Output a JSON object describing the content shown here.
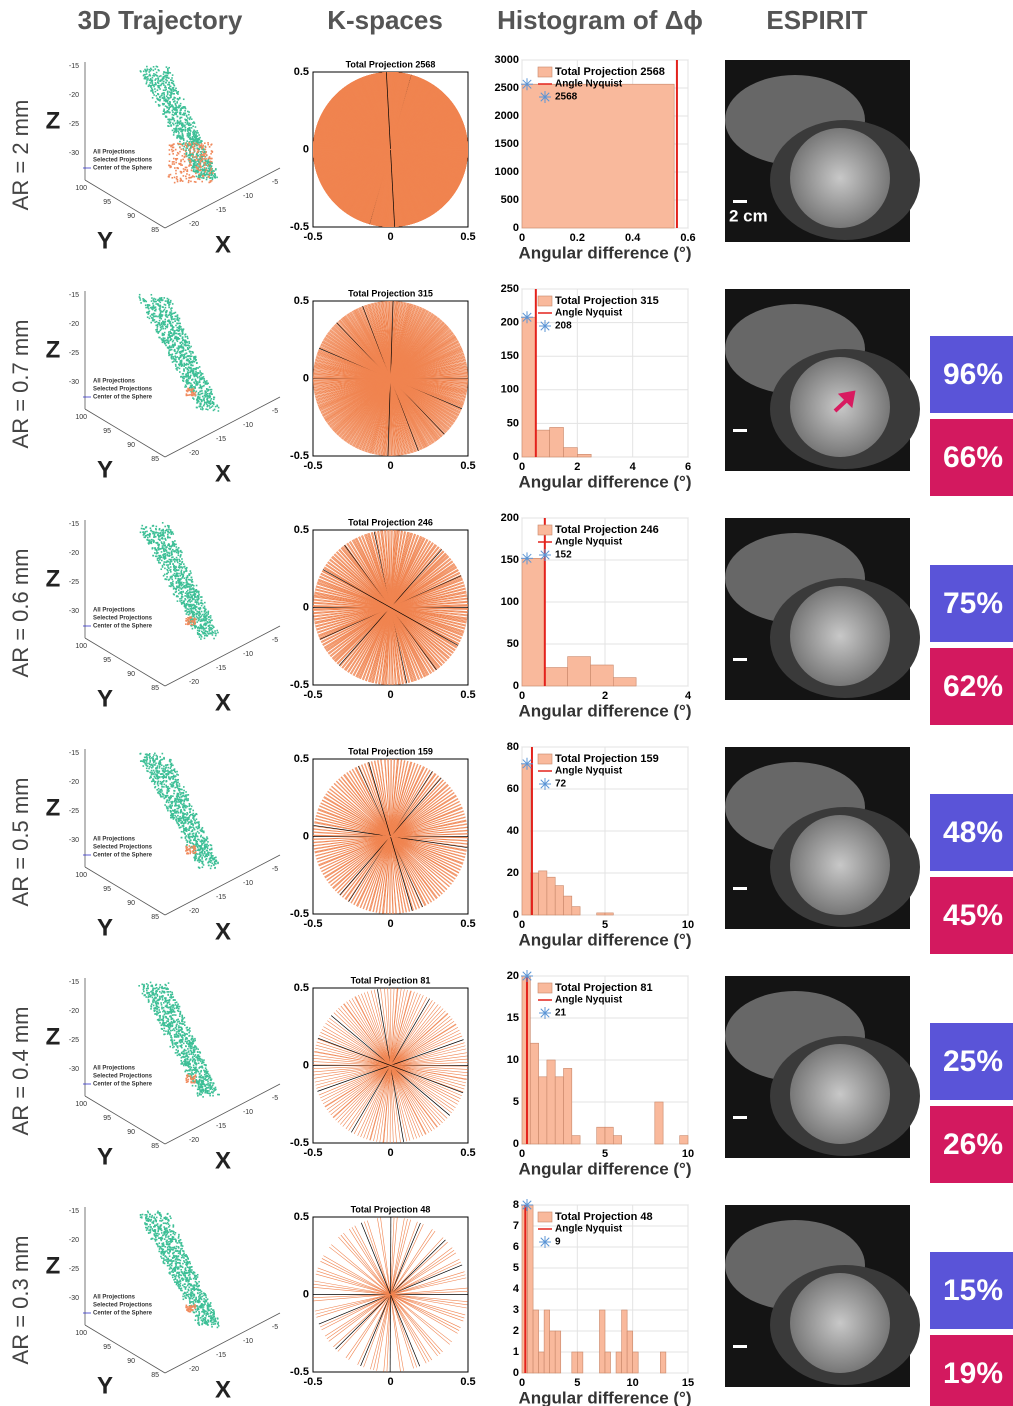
{
  "header": {
    "columns": [
      "3D Trajectory",
      "K-spaces",
      "Histogram of Δϕ",
      "ESPIRIT"
    ]
  },
  "trajectory": {
    "axis_labels": [
      "Z",
      "Y",
      "X"
    ],
    "z_ticks": [
      -15,
      -20,
      -25,
      -30
    ],
    "y_ticks": [
      100,
      95,
      90,
      85
    ],
    "x_ticks": [
      -5,
      -10,
      -15,
      -20
    ],
    "legend": [
      "All Projections",
      "Selected Projections",
      "Center of the Sphere"
    ]
  },
  "kspace": {
    "ticks": [
      -0.5,
      0,
      0.5
    ]
  },
  "histogram": {
    "xlabel": "Angular difference (°)",
    "legend_nyquist": "Angle Nyquist",
    "bar_color": "#f9b99c",
    "nyquist_color": "#e3221c"
  },
  "scale_bar_label": "2 cm",
  "rows": [
    {
      "label": "AR = 2 mm",
      "kspace_title": "Total Projection 2568",
      "projections": 2568,
      "hist": {
        "star_value": 2568,
        "nyquist": 0.56,
        "xlim": [
          0,
          0.6
        ],
        "xticks": [
          0,
          0.2,
          0.4,
          0.6
        ],
        "ylim": [
          0,
          3000
        ],
        "yticks": [
          0,
          500,
          1000,
          1500,
          2000,
          2500,
          3000
        ],
        "bins": [
          0,
          0.55
        ],
        "counts": [
          2568
        ]
      }
    },
    {
      "label": "AR = 0.7 mm",
      "kspace_title": "Total Projection 315",
      "projections": 315,
      "hist": {
        "star_value": 208,
        "nyquist": 0.5,
        "xlim": [
          0,
          6
        ],
        "xticks": [
          0,
          2,
          4,
          6
        ],
        "ylim": [
          0,
          250
        ],
        "yticks": [
          0,
          50,
          100,
          150,
          200,
          250
        ],
        "bins": [
          0,
          0.5,
          1,
          1.5,
          2,
          2.5
        ],
        "counts": [
          208,
          40,
          44,
          14,
          4
        ]
      },
      "scores": [
        "96%",
        "66%"
      ]
    },
    {
      "label": "AR = 0.6 mm",
      "kspace_title": "Total Projection 246",
      "projections": 246,
      "hist": {
        "star_value": 152,
        "nyquist": 0.55,
        "xlim": [
          0,
          4
        ],
        "xticks": [
          0,
          2,
          4
        ],
        "ylim": [
          0,
          200
        ],
        "yticks": [
          0,
          50,
          100,
          150,
          200
        ],
        "bins": [
          0,
          0.55,
          1.1,
          1.65,
          2.2,
          2.75
        ],
        "counts": [
          152,
          22,
          35,
          25,
          10
        ]
      },
      "scores": [
        "75%",
        "62%"
      ]
    },
    {
      "label": "AR = 0.5 mm",
      "kspace_title": "Total Projection 159",
      "projections": 159,
      "hist": {
        "star_value": 72,
        "nyquist": 0.6,
        "xlim": [
          0,
          10
        ],
        "xticks": [
          0,
          5,
          10
        ],
        "ylim": [
          0,
          80
        ],
        "yticks": [
          0,
          20,
          40,
          60,
          80
        ],
        "bins": [
          0,
          0.5,
          1,
          1.5,
          2,
          2.5,
          3,
          3.5,
          4,
          4.5,
          5,
          5.5
        ],
        "counts": [
          72,
          20,
          21,
          18,
          14,
          9,
          4,
          0,
          0,
          1,
          1
        ]
      },
      "scores": [
        "48%",
        "45%"
      ]
    },
    {
      "label": "AR = 0.4 mm",
      "kspace_title": "Total Projection 81",
      "projections": 81,
      "hist": {
        "star_value": 21,
        "nyquist": 0.3,
        "xlim": [
          0,
          10
        ],
        "xticks": [
          0,
          5,
          10
        ],
        "ylim": [
          0,
          20
        ],
        "yticks": [
          0,
          5,
          10,
          15,
          20
        ],
        "bins": [
          0,
          0.5,
          1,
          1.5,
          2,
          2.5,
          3,
          3.5,
          4,
          4.5,
          5,
          5.5,
          6,
          6.5,
          7,
          7.5,
          8,
          8.5,
          9,
          9.5,
          10
        ],
        "counts": [
          20,
          12,
          8,
          10,
          8,
          9,
          1,
          0,
          0,
          2,
          2,
          1,
          0,
          0,
          0,
          0,
          5,
          0,
          0,
          1
        ]
      },
      "scores": [
        "25%",
        "26%"
      ]
    },
    {
      "label": "AR = 0.3 mm",
      "kspace_title": "Total Projection 48",
      "projections": 48,
      "hist": {
        "star_value": 9,
        "nyquist": 0.3,
        "xlim": [
          0,
          15
        ],
        "xticks": [
          0,
          5,
          10,
          15
        ],
        "ylim": [
          0,
          8
        ],
        "yticks": [
          0,
          1,
          2,
          3,
          4,
          5,
          6,
          7,
          8
        ],
        "bins": [
          0,
          0.5,
          1,
          1.5,
          2,
          2.5,
          3,
          3.5,
          4,
          4.5,
          5,
          5.5,
          6,
          6.5,
          7,
          7.5,
          8,
          8.5,
          9,
          9.5,
          10,
          10.5,
          11,
          11.5,
          12,
          12.5,
          13,
          13.5
        ],
        "counts": [
          8,
          8,
          3,
          1,
          3,
          2,
          2,
          0,
          0,
          1,
          1,
          0,
          0,
          0,
          3,
          1,
          0,
          1,
          3,
          2,
          1,
          0,
          0,
          0,
          0,
          1,
          0
        ]
      },
      "scores": [
        "15%",
        "19%"
      ]
    }
  ]
}
